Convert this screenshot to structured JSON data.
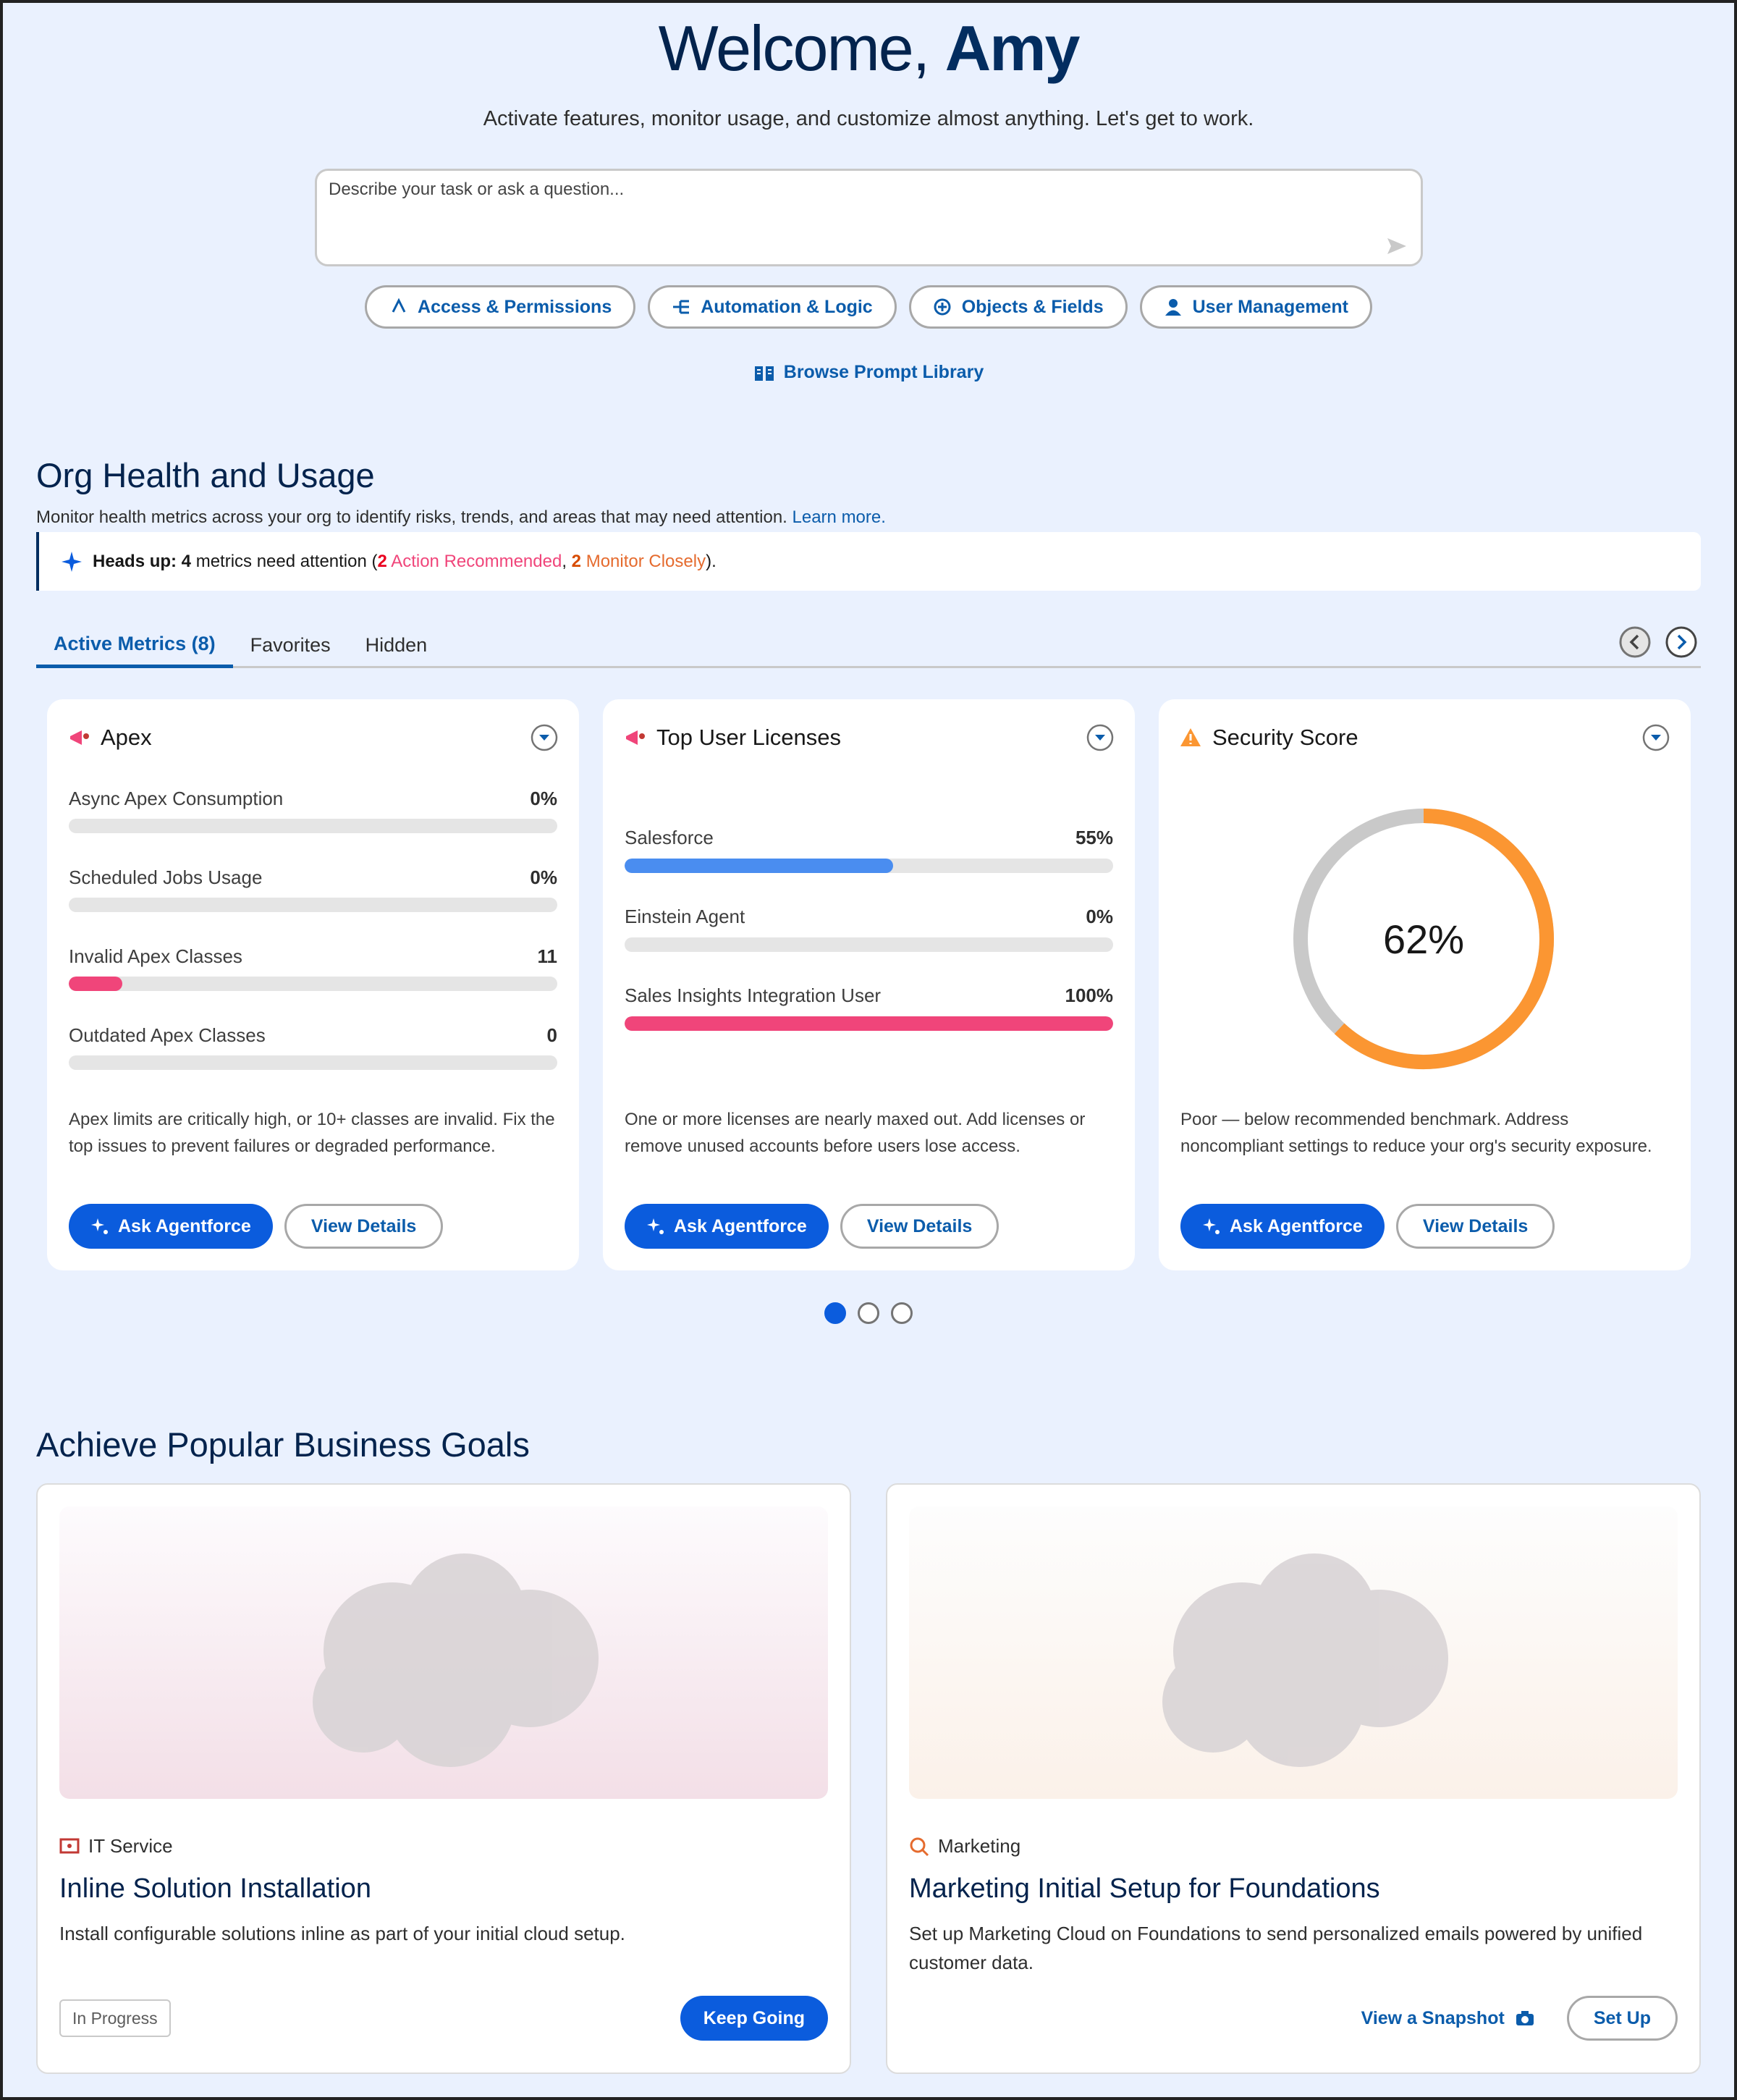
{
  "header": {
    "greeting": "Welcome,",
    "name": "Amy",
    "subtitle": "Activate features, monitor usage, and customize almost anything. Let's get to work."
  },
  "prompt": {
    "placeholder": "Describe your task or ask a question...",
    "chips": [
      "Access & Permissions",
      "Automation & Logic",
      "Objects & Fields",
      "User Management"
    ],
    "library_link": "Browse Prompt Library"
  },
  "org_health": {
    "title": "Org Health and Usage",
    "description": "Monitor health metrics across your org to identify risks, trends, and areas that may need attention.",
    "learn_more": "Learn more.",
    "alert": [
      {
        "text": "Heads up:",
        "style": "bold"
      },
      {
        "text": " 4",
        "style": "bold"
      },
      {
        "text": " metrics need attention (",
        "style": "plain"
      },
      {
        "text": "2",
        "style": "bold-red"
      },
      {
        "text": " Action Recommended",
        "style": "red"
      },
      {
        "text": ", ",
        "style": "plain"
      },
      {
        "text": "2",
        "style": "bold-orange"
      },
      {
        "text": " Monitor Closely",
        "style": "orange"
      },
      {
        "text": ").",
        "style": "plain"
      }
    ],
    "tabs": [
      "Active Metrics (8)",
      "Favorites",
      "Hidden"
    ],
    "xlim": [
      0,
      100
    ],
    "cards": [
      {
        "title": "Apex",
        "metrics": [
          {
            "label": "Async Apex Consumption",
            "value": 0,
            "value_label": "0%",
            "color": "#f0457a"
          },
          {
            "label": "Scheduled Jobs Usage",
            "value": 0,
            "value_label": "0%",
            "color": "#f0457a"
          },
          {
            "label": "Invalid Apex Classes",
            "value": 11,
            "color": "#f0457a"
          },
          {
            "label": "Outdated Apex Classes",
            "value": 0,
            "color": "#f0457a"
          }
        ],
        "description": "Apex limits are critically high, or 10+ classes are invalid. Fix the top issues to prevent failures or degraded performance.",
        "primary_button": "Ask Agentforce",
        "secondary_button": "View Details"
      },
      {
        "title": "Top User Licenses",
        "metrics": [
          {
            "label": "Salesforce",
            "value": 55,
            "value_label": "55%",
            "color": "#4a8df0"
          },
          {
            "label": "Einstein Agent",
            "value": 0,
            "value_label": "0%",
            "color": "#4a8df0"
          },
          {
            "label": "Sales Insights Integration User",
            "value": 100,
            "value_label": "100%",
            "color": "#f0457a"
          }
        ],
        "description": "One or more licenses are nearly maxed out. Add licenses or remove unused accounts before users lose access.",
        "primary_button": "Ask Agentforce",
        "secondary_button": "View Details"
      },
      {
        "title": "Security Score",
        "gauge": {
          "value": 62,
          "value_label": "62%",
          "color": "#fb9632"
        },
        "description": "Poor — below recommended benchmark. Address noncompliant settings to reduce your org's security exposure.",
        "primary_button": "Ask Agentforce",
        "secondary_button": "View Details"
      }
    ]
  },
  "goals": {
    "title": "Achieve Popular Business Goals",
    "cards": [
      {
        "category": "IT Service",
        "title": "Inline Solution Installation",
        "description": "Install configurable solutions inline as part of your initial cloud setup.",
        "status": "In Progress",
        "button": "Keep Going"
      },
      {
        "category": "Marketing",
        "title": "Marketing Initial Setup for Foundations",
        "description": "Set up Marketing Cloud on Foundations to send personalized emails powered by unified customer data.",
        "link": "View a Snapshot",
        "button": "Set Up"
      }
    ]
  }
}
